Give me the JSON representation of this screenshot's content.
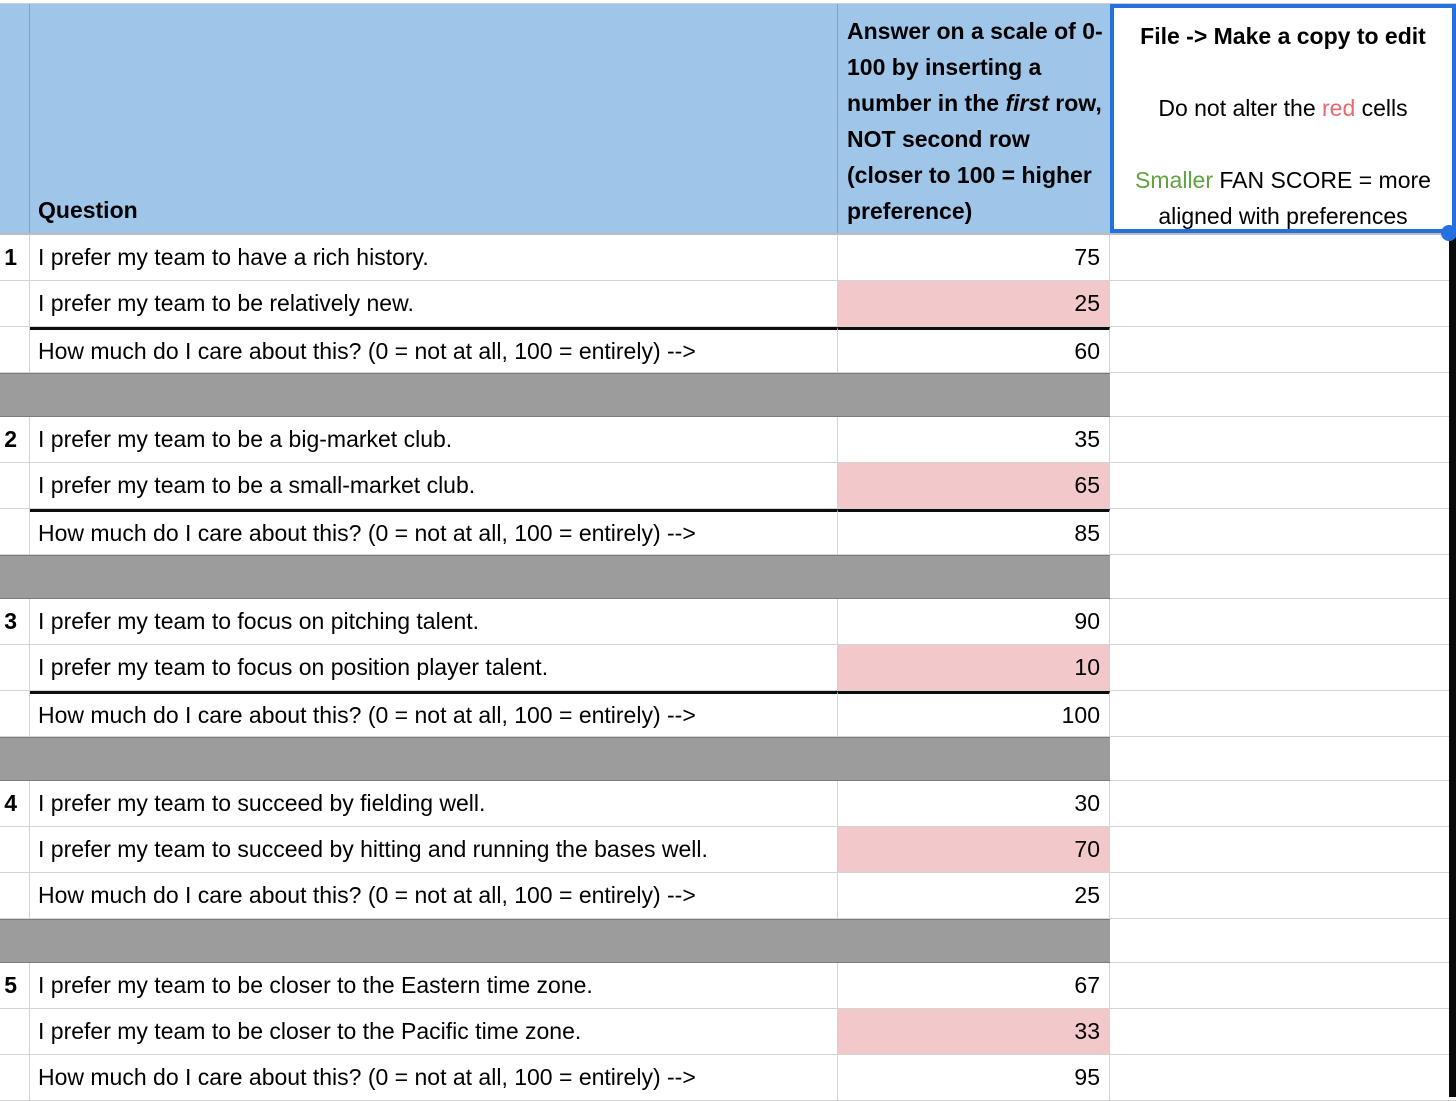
{
  "header": {
    "question_label": "Question",
    "answer": {
      "part1": "Answer on a scale of 0-100 by inserting a number in the ",
      "italic": "first",
      "part2": " row, NOT second row (closer to 100 = higher preference)"
    },
    "notes": {
      "line1": "File -> Make a copy to edit",
      "line2_prefix": "Do not alter the ",
      "line2_red": "red",
      "line2_suffix": " cells",
      "line3_green": "Smaller",
      "line3_rest": " FAN SCORE = more",
      "line4": "aligned with preferences"
    }
  },
  "blocks": [
    {
      "number": "1",
      "statement1": "I prefer my team to have a rich history.",
      "value1": "75",
      "statement2": "I prefer my team to be relatively new.",
      "value2": "25",
      "care_question": "How much do I care about this? (0 = not at all, 100 = entirely) -->",
      "care_value": "60",
      "thick_divider": true,
      "separator_after": true
    },
    {
      "number": "2",
      "statement1": "I prefer my team to be a big-market club.",
      "value1": "35",
      "statement2": "I prefer my team to be a small-market club.",
      "value2": "65",
      "care_question": "How much do I care about this? (0 = not at all, 100 = entirely) -->",
      "care_value": "85",
      "thick_divider": true,
      "separator_after": true
    },
    {
      "number": "3",
      "statement1": "I prefer my team to focus on pitching talent.",
      "value1": "90",
      "statement2": "I prefer my team to focus on position player talent.",
      "value2": "10",
      "care_question": "How much do I care about this? (0 = not at all, 100 = entirely) -->",
      "care_value": "100",
      "thick_divider": true,
      "separator_after": true
    },
    {
      "number": "4",
      "statement1": "I prefer my team to succeed by fielding well.",
      "value1": "30",
      "statement2": "I prefer my team to succeed by hitting and running the bases well.",
      "value2": "70",
      "care_question": "How much do I care about this? (0 = not at all, 100 = entirely) -->",
      "care_value": "25",
      "thick_divider": false,
      "separator_after": true
    },
    {
      "number": "5",
      "statement1": "I prefer my team to be closer to the Eastern time zone.",
      "value1": "67",
      "statement2": "I prefer my team to be closer to the Pacific time zone.",
      "value2": "33",
      "care_question": "How much do I care about this? (0 = not at all, 100 = entirely) -->",
      "care_value": "95",
      "thick_divider": false,
      "separator_after": false
    }
  ],
  "colors": {
    "header_blue": "#9fc5e8",
    "warning_pink": "#f2c8ca",
    "separator_gray": "#9c9c9c",
    "selection_blue": "#2470de",
    "red_text": "#e8696d",
    "green_text": "#61a243",
    "strip_black": "#0a0a0a"
  }
}
